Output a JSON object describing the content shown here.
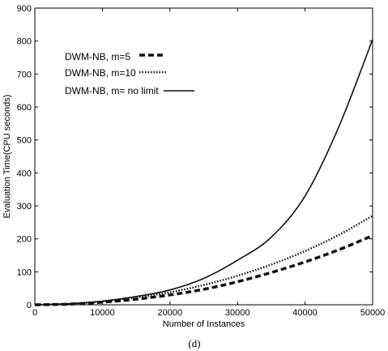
{
  "chart_data": {
    "type": "line",
    "xlabel": "Number of Instances",
    "ylabel": "Evaluation Time(CPU seconds)",
    "xlim": [
      0,
      50000
    ],
    "ylim": [
      0,
      900
    ],
    "xticks": [
      0,
      10000,
      20000,
      30000,
      40000,
      50000
    ],
    "yticks": [
      0,
      100,
      200,
      300,
      400,
      500,
      600,
      700,
      800,
      900
    ],
    "grid": false,
    "legend_position": "top-left",
    "caption": "(d)",
    "series": [
      {
        "name": "DWM-NB, m=5",
        "style": "dashed",
        "x": [
          0,
          5000,
          10000,
          15000,
          20000,
          25000,
          30000,
          35000,
          40000,
          45000,
          50000
        ],
        "y": [
          0,
          2,
          8,
          17,
          30,
          47,
          70,
          98,
          130,
          167,
          210
        ]
      },
      {
        "name": "DWM-NB, m=10",
        "style": "dotted",
        "x": [
          0,
          5000,
          10000,
          15000,
          20000,
          25000,
          30000,
          35000,
          40000,
          45000,
          50000
        ],
        "y": [
          0,
          3,
          10,
          22,
          38,
          60,
          88,
          122,
          163,
          212,
          270
        ]
      },
      {
        "name": "DWM-NB, m= no limit",
        "style": "solid",
        "x": [
          0,
          5000,
          10000,
          15000,
          20000,
          25000,
          30000,
          35000,
          40000,
          45000,
          50000
        ],
        "y": [
          0,
          3,
          11,
          25,
          45,
          80,
          135,
          205,
          330,
          540,
          805
        ]
      }
    ]
  }
}
